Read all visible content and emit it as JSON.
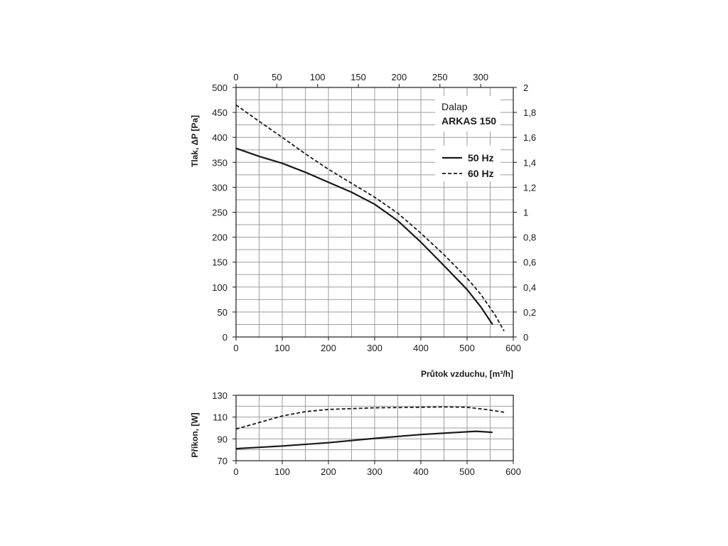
{
  "chart_data": [
    {
      "type": "line",
      "ylabel": "Tlak, ΔP [Pa]",
      "xlabel": "Průtok vzduchu, [m³/h]",
      "x_ticks": [
        "0",
        "100",
        "200",
        "300",
        "400",
        "500",
        "600"
      ],
      "xlim": [
        0,
        600
      ],
      "y_ticks": [
        "0",
        "50",
        "100",
        "150",
        "200",
        "250",
        "300",
        "350",
        "400",
        "450",
        "500"
      ],
      "ylim": [
        0,
        500
      ],
      "top_x_ticks": [
        "0",
        "50",
        "100",
        "150",
        "200",
        "250",
        "300"
      ],
      "top_xlim": [
        0,
        340
      ],
      "right_y_ticks": [
        "0",
        "0,2",
        "0,4",
        "0,6",
        "0,8",
        "1",
        "1,2",
        "1,4",
        "1,6",
        "1,8",
        "2"
      ],
      "right_ylim": [
        0,
        2
      ],
      "grid": true,
      "legend_position": "top-right",
      "label_box": {
        "line1": "Dalap",
        "line2": "ARKAS 150"
      },
      "series": [
        {
          "name": "50 Hz",
          "style": "solid",
          "points": [
            [
              0,
              378
            ],
            [
              50,
              362
            ],
            [
              100,
              348
            ],
            [
              150,
              330
            ],
            [
              200,
              310
            ],
            [
              250,
              290
            ],
            [
              300,
              266
            ],
            [
              350,
              233
            ],
            [
              400,
              190
            ],
            [
              450,
              143
            ],
            [
              500,
              95
            ],
            [
              530,
              60
            ],
            [
              555,
              25
            ]
          ]
        },
        {
          "name": "60 Hz",
          "style": "dashed",
          "points": [
            [
              0,
              465
            ],
            [
              50,
              432
            ],
            [
              100,
              400
            ],
            [
              150,
              367
            ],
            [
              200,
              336
            ],
            [
              250,
              308
            ],
            [
              300,
              280
            ],
            [
              350,
              248
            ],
            [
              400,
              208
            ],
            [
              450,
              165
            ],
            [
              500,
              118
            ],
            [
              530,
              85
            ],
            [
              560,
              45
            ],
            [
              580,
              12
            ]
          ]
        }
      ],
      "colors": {
        "line": "#1a1a1a",
        "grid": "#9e9e9e"
      }
    },
    {
      "type": "line",
      "ylabel": "Příkon, [W]",
      "xlabel": "",
      "x_ticks": [
        "0",
        "100",
        "200",
        "300",
        "400",
        "500",
        "600"
      ],
      "xlim": [
        0,
        600
      ],
      "y_ticks": [
        "70",
        "90",
        "110",
        "130"
      ],
      "ylim": [
        70,
        130
      ],
      "grid": true,
      "series": [
        {
          "name": "50 Hz",
          "style": "solid",
          "points": [
            [
              0,
              81
            ],
            [
              100,
              83.5
            ],
            [
              200,
              86.5
            ],
            [
              300,
              90.5
            ],
            [
              400,
              94
            ],
            [
              500,
              96.5
            ],
            [
              520,
              97
            ],
            [
              555,
              96
            ]
          ]
        },
        {
          "name": "60 Hz",
          "style": "dashed",
          "points": [
            [
              0,
              99
            ],
            [
              50,
              105
            ],
            [
              100,
              111
            ],
            [
              150,
              115
            ],
            [
              200,
              117
            ],
            [
              300,
              118.5
            ],
            [
              400,
              119
            ],
            [
              450,
              119.3
            ],
            [
              500,
              119
            ],
            [
              540,
              117
            ],
            [
              580,
              114.5
            ]
          ]
        }
      ],
      "colors": {
        "line": "#1a1a1a",
        "grid": "#9e9e9e"
      }
    }
  ]
}
